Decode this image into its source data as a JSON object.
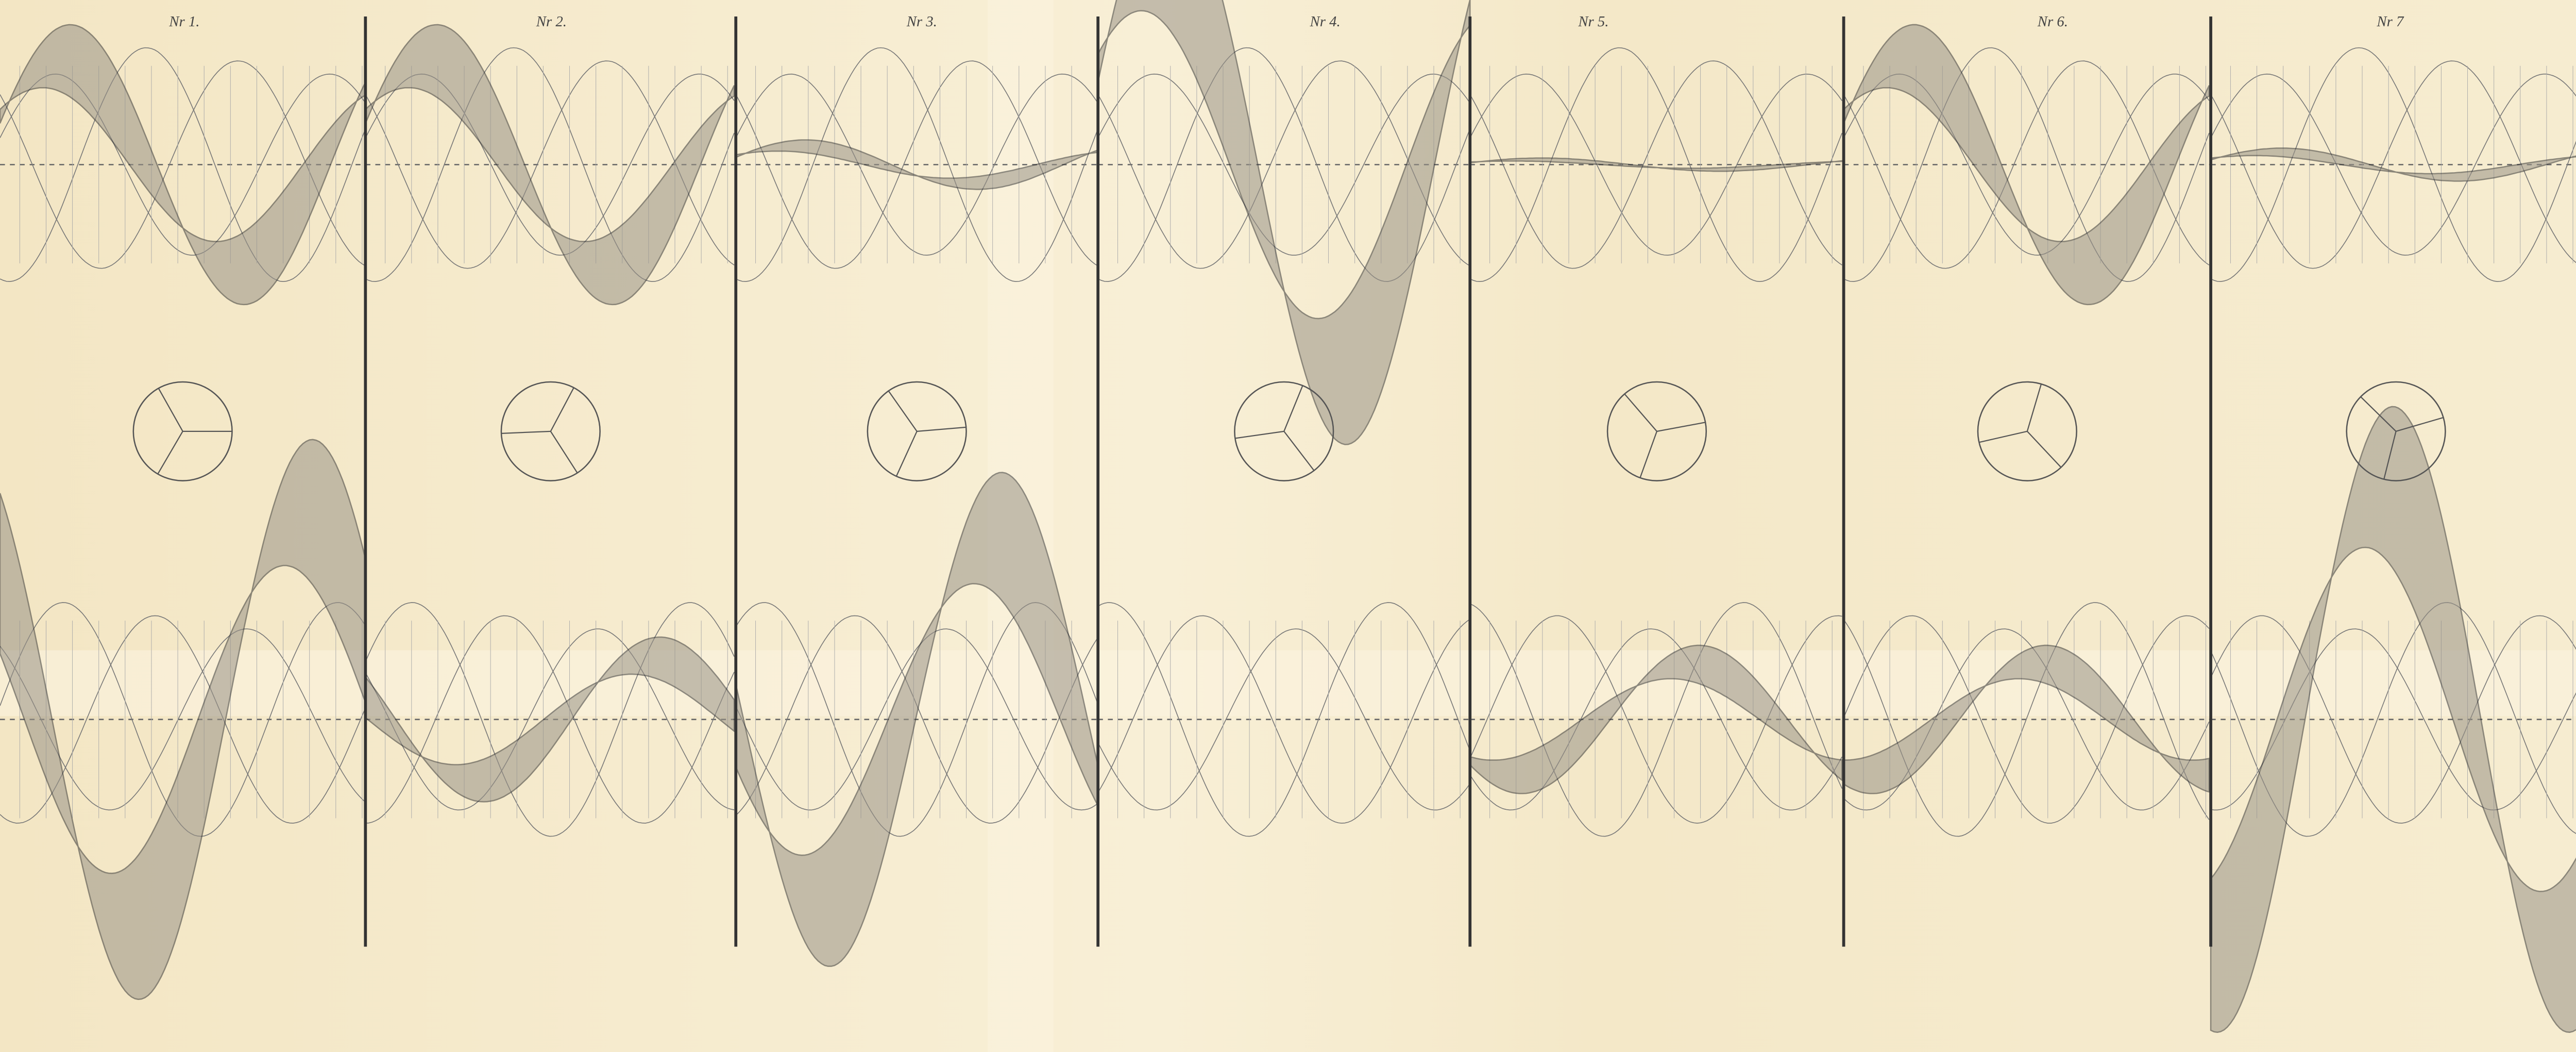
{
  "plate": {
    "panels": [
      {
        "label": "Nr 1."
      },
      {
        "label": "Nr 2."
      },
      {
        "label": "Nr 3."
      },
      {
        "label": "Nr 4."
      },
      {
        "label": "Nr 5."
      },
      {
        "label": "Nr 6."
      },
      {
        "label": "Nr 7"
      }
    ]
  }
}
